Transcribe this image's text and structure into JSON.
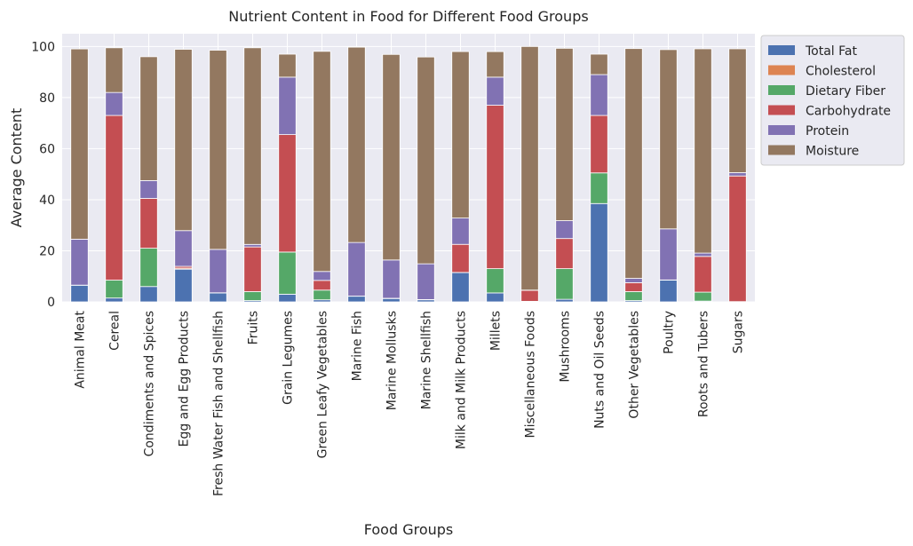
{
  "chart_data": {
    "type": "bar",
    "stacked": true,
    "title": "Nutrient Content in Food for Different Food Groups",
    "xlabel": "Food Groups",
    "ylabel": "Average Content",
    "ylim": [
      0,
      105
    ],
    "yticks": [
      0,
      20,
      40,
      60,
      80,
      100
    ],
    "grid": true,
    "legend_position": "outside-right-top",
    "categories": [
      "Animal Meat",
      "Cereal",
      "Condiments and Spices",
      "Egg and Egg Products",
      "Fresh Water Fish and Shellfish",
      "Fruits",
      "Grain Legumes",
      "Green Leafy Vegetables",
      "Marine Fish",
      "Marine Mollusks",
      "Marine Shellfish",
      "Milk and Milk Products",
      "Millets",
      "Miscellaneous Foods",
      "Mushrooms",
      "Nuts and Oil Seeds",
      "Other Vegetables",
      "Poultry",
      "Roots and Tubers",
      "Sugars"
    ],
    "series": [
      {
        "name": "Total Fat",
        "color": "#4C72B0",
        "values": [
          6.5,
          1.5,
          6,
          12.8,
          3.5,
          0.5,
          3,
          0.8,
          2.2,
          1.3,
          0.8,
          11.5,
          3.5,
          0.2,
          1,
          38.5,
          0.5,
          8.5,
          0.3,
          0.1
        ]
      },
      {
        "name": "Cholesterol",
        "color": "#DD8452",
        "values": [
          0.05,
          0,
          0,
          0.4,
          0.05,
          0,
          0,
          0,
          0.05,
          0.1,
          0.1,
          0.02,
          0,
          0,
          0,
          0,
          0,
          0.08,
          0,
          0
        ]
      },
      {
        "name": "Dietary Fiber",
        "color": "#55A868",
        "values": [
          0,
          7,
          15,
          0,
          0,
          3.5,
          16.5,
          3.8,
          0,
          0,
          0,
          0,
          9.5,
          0,
          12,
          12,
          3.5,
          0,
          3.5,
          0
        ]
      },
      {
        "name": "Carbohydrate",
        "color": "#C44E52",
        "values": [
          0,
          64.5,
          19.5,
          0.7,
          0,
          17.5,
          46,
          3.8,
          0,
          0,
          0,
          11,
          64,
          4.3,
          11.8,
          22.5,
          3.5,
          0,
          14,
          49.2
        ]
      },
      {
        "name": "Protein",
        "color": "#8172B3",
        "values": [
          18,
          9,
          7,
          14,
          17,
          1,
          22.5,
          3.5,
          21,
          15,
          14,
          10.3,
          11,
          0.1,
          7,
          16,
          1.7,
          20,
          1.3,
          1.3
        ]
      },
      {
        "name": "Moisture",
        "color": "#937860",
        "values": [
          74.5,
          17.5,
          48.5,
          71,
          78,
          77,
          9,
          86.2,
          76.5,
          80.5,
          81,
          65.2,
          10,
          95.4,
          67.5,
          8,
          90,
          70.2,
          80,
          48.5
        ]
      }
    ]
  }
}
